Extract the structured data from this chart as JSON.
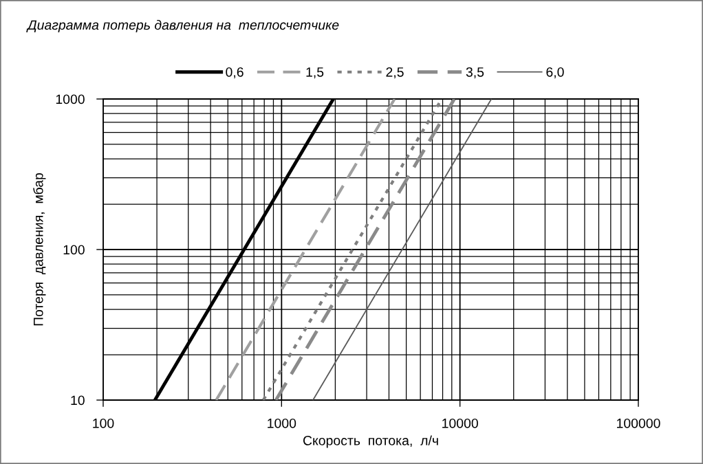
{
  "chart_data": {
    "type": "line",
    "title": "Диаграмма потерь давления на  теплосчетчике",
    "xlabel": "Скорость  потока,  л/ч",
    "ylabel": "Потеря  давления,  мбар",
    "log": "xy",
    "xlim": [
      100,
      100000
    ],
    "ylim": [
      10,
      1000
    ],
    "xticks": [
      100,
      {
        "value": 200,
        "label": null
      },
      {
        "value": 300,
        "label": null
      },
      {
        "value": 400,
        "label": null
      },
      {
        "value": 500,
        "label": null
      },
      {
        "value": 600,
        "label": null
      },
      {
        "value": 700,
        "label": null
      },
      {
        "value": 800,
        "label": null
      },
      {
        "value": 900,
        "label": null
      },
      1000,
      {
        "value": 2000,
        "label": null
      },
      {
        "value": 3000,
        "label": null
      },
      {
        "value": 4000,
        "label": null
      },
      {
        "value": 5000,
        "label": null
      },
      {
        "value": 6000,
        "label": null
      },
      {
        "value": 7000,
        "label": null
      },
      {
        "value": 8000,
        "label": null
      },
      {
        "value": 9000,
        "label": null
      },
      10000,
      {
        "value": 20000,
        "label": null
      },
      {
        "value": 30000,
        "label": null
      },
      {
        "value": 40000,
        "label": null
      },
      {
        "value": 50000,
        "label": null
      },
      {
        "value": 60000,
        "label": null
      },
      {
        "value": 70000,
        "label": null
      },
      {
        "value": 80000,
        "label": null
      },
      {
        "value": 90000,
        "label": null
      },
      100000
    ],
    "yticks": [
      10,
      {
        "value": 20,
        "label": null
      },
      {
        "value": 30,
        "label": null
      },
      {
        "value": 40,
        "label": null
      },
      {
        "value": 50,
        "label": null
      },
      {
        "value": 60,
        "label": null
      },
      {
        "value": 70,
        "label": null
      },
      {
        "value": 80,
        "label": null
      },
      {
        "value": 90,
        "label": null
      },
      100,
      {
        "value": 200,
        "label": null
      },
      {
        "value": 300,
        "label": null
      },
      {
        "value": 400,
        "label": null
      },
      {
        "value": 500,
        "label": null
      },
      {
        "value": 600,
        "label": null
      },
      {
        "value": 700,
        "label": null
      },
      {
        "value": 800,
        "label": null
      },
      {
        "value": 900,
        "label": null
      },
      1000
    ],
    "grid": true,
    "legend": "top",
    "series": [
      {
        "name": "0,6",
        "color": "#000000",
        "line_style": "solid",
        "x": [
          195,
          1950
        ],
        "values": [
          10,
          1000
        ]
      },
      {
        "name": "1,5",
        "color": "#a0a0a0",
        "line_style": "dashed",
        "x": [
          430,
          4300
        ],
        "values": [
          10,
          1000
        ]
      },
      {
        "name": "2,5",
        "color": "#7f7f7f",
        "line_style": "dotted",
        "x": [
          790,
          7900
        ],
        "values": [
          10,
          1000
        ]
      },
      {
        "name": "3,5",
        "color": "#8a8a8a",
        "line_style": "dashed",
        "x": [
          930,
          9300
        ],
        "values": [
          10,
          1000
        ]
      },
      {
        "name": "6,0",
        "color": "#595959",
        "line_style": "solid",
        "x": [
          1500,
          15000
        ],
        "values": [
          10,
          1000
        ]
      }
    ]
  }
}
